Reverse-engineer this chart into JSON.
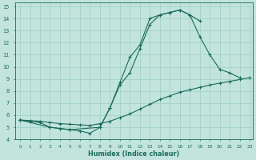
{
  "bg_color": "#c2e4dc",
  "grid_color": "#9dcfc5",
  "line_color": "#1a6b5a",
  "xlabel": "Humidex (Indice chaleur)",
  "xlim_min": -0.5,
  "xlim_max": 23.3,
  "ylim_min": 4.0,
  "ylim_max": 15.3,
  "xticks": [
    0,
    1,
    2,
    3,
    4,
    5,
    6,
    7,
    8,
    9,
    10,
    11,
    12,
    13,
    14,
    15,
    16,
    17,
    18,
    19,
    20,
    21,
    22,
    23
  ],
  "yticks": [
    4,
    5,
    6,
    7,
    8,
    9,
    10,
    11,
    12,
    13,
    14,
    15
  ],
  "curve1_x": [
    0,
    1,
    2,
    3,
    4,
    5,
    6,
    7,
    8,
    9,
    10,
    11,
    12,
    13,
    14,
    15,
    16,
    17,
    18
  ],
  "curve1_y": [
    5.6,
    5.5,
    5.4,
    5.0,
    4.9,
    4.8,
    4.7,
    4.5,
    5.0,
    6.6,
    8.7,
    10.8,
    11.8,
    14.0,
    14.3,
    14.5,
    14.7,
    14.3,
    13.8
  ],
  "curve2_x": [
    0,
    1,
    2,
    3,
    4,
    5,
    6,
    7,
    8,
    9,
    10,
    11,
    12,
    13,
    14,
    15,
    16,
    17,
    18,
    19,
    20,
    21,
    22,
    23
  ],
  "curve2_y": [
    5.6,
    5.55,
    5.5,
    5.4,
    5.3,
    5.25,
    5.2,
    5.15,
    5.3,
    5.5,
    5.8,
    6.1,
    6.5,
    6.9,
    7.3,
    7.6,
    7.9,
    8.1,
    8.3,
    8.5,
    8.65,
    8.8,
    8.95,
    9.1
  ],
  "curve3_x": [
    0,
    3,
    5,
    8,
    9,
    10,
    11,
    12,
    13,
    14,
    15,
    16,
    17,
    18,
    19,
    20,
    21,
    22
  ],
  "curve3_y": [
    5.6,
    5.0,
    4.8,
    5.0,
    6.6,
    8.5,
    9.5,
    11.5,
    13.5,
    14.3,
    14.5,
    14.7,
    14.3,
    12.5,
    11.0,
    9.8,
    9.5,
    9.1
  ]
}
